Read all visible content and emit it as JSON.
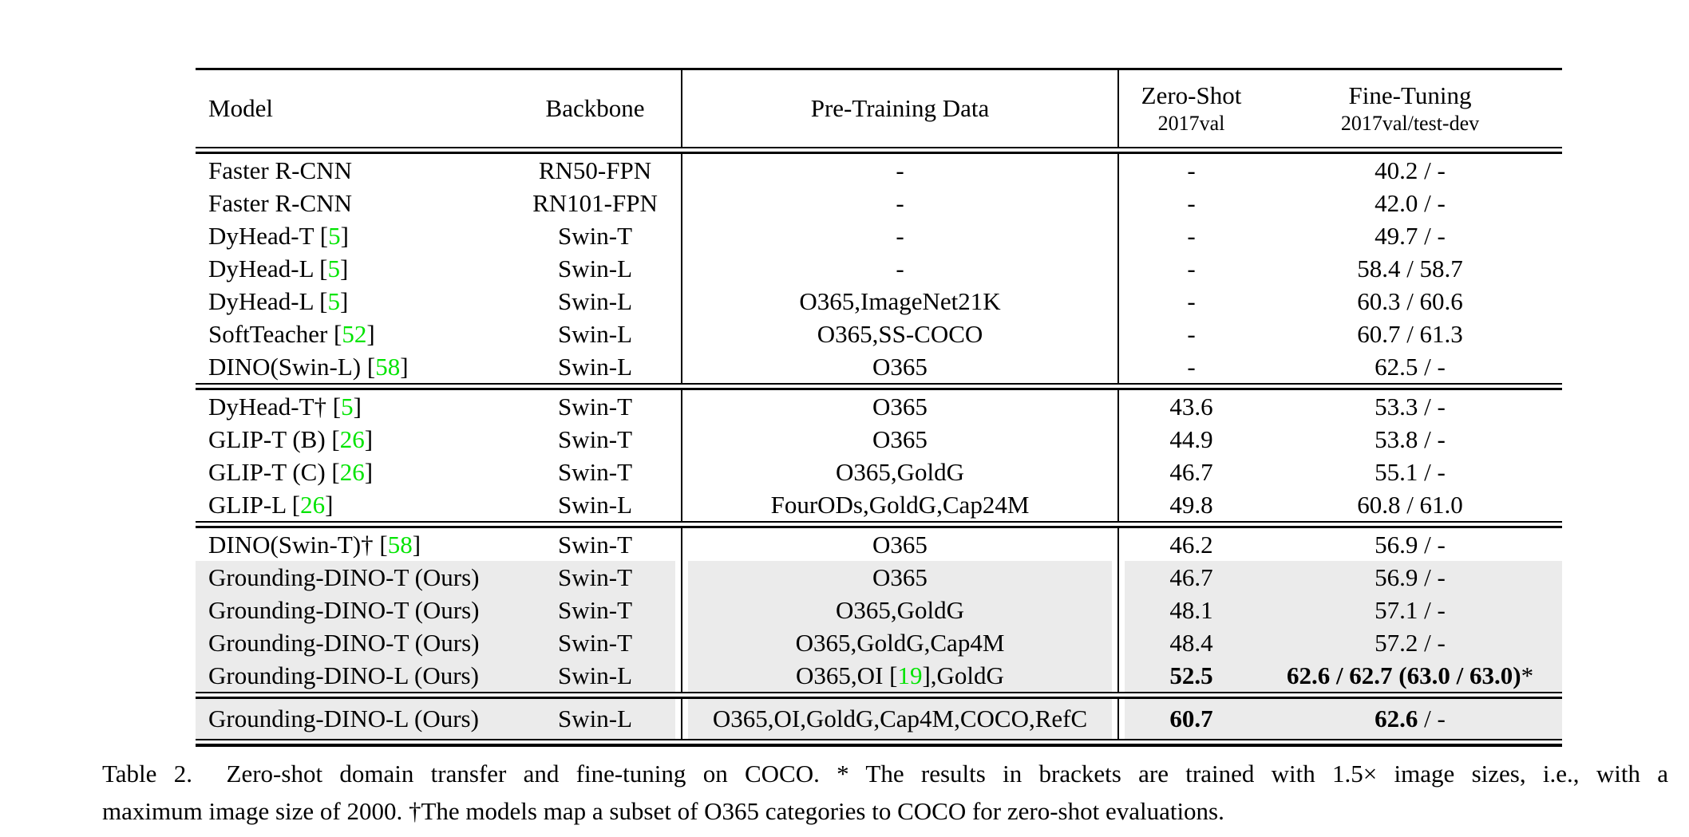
{
  "colors": {
    "cite_green": "#00e400",
    "row_shade": "#ebebeb"
  },
  "table": {
    "header": {
      "model": "Model",
      "backbone": "Backbone",
      "pretrain": "Pre-Training Data",
      "zeroshot_top": "Zero-Shot",
      "zeroshot_sub": "2017val",
      "finetune_top": "Fine-Tuning",
      "finetune_sub": "2017val/test-dev"
    },
    "groups": [
      {
        "rows": [
          {
            "model_pre": "Faster R-CNN",
            "model_cite": "",
            "model_post": "",
            "backbone": "RN50-FPN",
            "pre_pre": "-",
            "pre_cite": "",
            "pre_post": "",
            "zs": "-",
            "zs_bold": false,
            "ft_bold": "",
            "ft_reg": "40.2 / -",
            "shaded": false
          },
          {
            "model_pre": "Faster R-CNN",
            "model_cite": "",
            "model_post": "",
            "backbone": "RN101-FPN",
            "pre_pre": "-",
            "pre_cite": "",
            "pre_post": "",
            "zs": "-",
            "zs_bold": false,
            "ft_bold": "",
            "ft_reg": "42.0 / -",
            "shaded": false
          },
          {
            "model_pre": "DyHead-T [",
            "model_cite": "5",
            "model_post": "]",
            "backbone": "Swin-T",
            "pre_pre": "-",
            "pre_cite": "",
            "pre_post": "",
            "zs": "-",
            "zs_bold": false,
            "ft_bold": "",
            "ft_reg": "49.7 / -",
            "shaded": false
          },
          {
            "model_pre": "DyHead-L [",
            "model_cite": "5",
            "model_post": "]",
            "backbone": "Swin-L",
            "pre_pre": "-",
            "pre_cite": "",
            "pre_post": "",
            "zs": "-",
            "zs_bold": false,
            "ft_bold": "",
            "ft_reg": "58.4 / 58.7",
            "shaded": false
          },
          {
            "model_pre": "DyHead-L [",
            "model_cite": "5",
            "model_post": "]",
            "backbone": "Swin-L",
            "pre_pre": "O365,ImageNet21K",
            "pre_cite": "",
            "pre_post": "",
            "zs": "-",
            "zs_bold": false,
            "ft_bold": "",
            "ft_reg": "60.3 / 60.6",
            "shaded": false
          },
          {
            "model_pre": "SoftTeacher [",
            "model_cite": "52",
            "model_post": "]",
            "backbone": "Swin-L",
            "pre_pre": "O365,SS-COCO",
            "pre_cite": "",
            "pre_post": "",
            "zs": "-",
            "zs_bold": false,
            "ft_bold": "",
            "ft_reg": "60.7 / 61.3",
            "shaded": false
          },
          {
            "model_pre": "DINO(Swin-L) [",
            "model_cite": "58",
            "model_post": "]",
            "backbone": "Swin-L",
            "pre_pre": "O365",
            "pre_cite": "",
            "pre_post": "",
            "zs": "-",
            "zs_bold": false,
            "ft_bold": "",
            "ft_reg": "62.5 / -",
            "shaded": false
          }
        ]
      },
      {
        "rows": [
          {
            "model_pre": "DyHead-T† [",
            "model_cite": "5",
            "model_post": "]",
            "backbone": "Swin-T",
            "pre_pre": "O365",
            "pre_cite": "",
            "pre_post": "",
            "zs": "43.6",
            "zs_bold": false,
            "ft_bold": "",
            "ft_reg": "53.3 / -",
            "shaded": false
          },
          {
            "model_pre": "GLIP-T (B) [",
            "model_cite": "26",
            "model_post": "]",
            "backbone": "Swin-T",
            "pre_pre": "O365",
            "pre_cite": "",
            "pre_post": "",
            "zs": "44.9",
            "zs_bold": false,
            "ft_bold": "",
            "ft_reg": "53.8 / -",
            "shaded": false
          },
          {
            "model_pre": "GLIP-T (C) [",
            "model_cite": "26",
            "model_post": "]",
            "backbone": "Swin-T",
            "pre_pre": "O365,GoldG",
            "pre_cite": "",
            "pre_post": "",
            "zs": "46.7",
            "zs_bold": false,
            "ft_bold": "",
            "ft_reg": "55.1 / -",
            "shaded": false
          },
          {
            "model_pre": "GLIP-L [",
            "model_cite": "26",
            "model_post": "]",
            "backbone": "Swin-L",
            "pre_pre": "FourODs,GoldG,Cap24M",
            "pre_cite": "",
            "pre_post": "",
            "zs": "49.8",
            "zs_bold": false,
            "ft_bold": "",
            "ft_reg": "60.8 / 61.0",
            "shaded": false
          }
        ]
      },
      {
        "rows": [
          {
            "model_pre": "DINO(Swin-T)† [",
            "model_cite": "58",
            "model_post": "]",
            "backbone": "Swin-T",
            "pre_pre": "O365",
            "pre_cite": "",
            "pre_post": "",
            "zs": "46.2",
            "zs_bold": false,
            "ft_bold": "",
            "ft_reg": "56.9 / -",
            "shaded": false
          },
          {
            "model_pre": "Grounding-DINO-T (Ours)",
            "model_cite": "",
            "model_post": "",
            "backbone": "Swin-T",
            "pre_pre": "O365",
            "pre_cite": "",
            "pre_post": "",
            "zs": "46.7",
            "zs_bold": false,
            "ft_bold": "",
            "ft_reg": "56.9 / -",
            "shaded": true
          },
          {
            "model_pre": "Grounding-DINO-T (Ours)",
            "model_cite": "",
            "model_post": "",
            "backbone": "Swin-T",
            "pre_pre": "O365,GoldG",
            "pre_cite": "",
            "pre_post": "",
            "zs": "48.1",
            "zs_bold": false,
            "ft_bold": "",
            "ft_reg": "57.1 / -",
            "shaded": true
          },
          {
            "model_pre": "Grounding-DINO-T (Ours)",
            "model_cite": "",
            "model_post": "",
            "backbone": "Swin-T",
            "pre_pre": "O365,GoldG,Cap4M",
            "pre_cite": "",
            "pre_post": "",
            "zs": "48.4",
            "zs_bold": false,
            "ft_bold": "",
            "ft_reg": "57.2 / -",
            "shaded": true
          },
          {
            "model_pre": "Grounding-DINO-L (Ours)",
            "model_cite": "",
            "model_post": "",
            "backbone": "Swin-L",
            "pre_pre": "O365,OI [",
            "pre_cite": "19",
            "pre_post": "],GoldG",
            "zs": "52.5",
            "zs_bold": true,
            "ft_bold": "62.6 / 62.7 (63.0 / 63.0)",
            "ft_reg": "*",
            "shaded": true
          }
        ]
      },
      {
        "rows": [
          {
            "model_pre": "Grounding-DINO-L (Ours)",
            "model_cite": "",
            "model_post": "",
            "backbone": "Swin-L",
            "pre_pre": "O365,OI,GoldG,Cap4M,COCO,RefC",
            "pre_cite": "",
            "pre_post": "",
            "zs": "60.7",
            "zs_bold": true,
            "ft_bold": "62.6",
            "ft_reg": " / -",
            "shaded": true
          }
        ]
      }
    ]
  },
  "caption": {
    "line1": "Table 2.  Zero-shot domain transfer and fine-tuning on COCO. * The results in brackets are trained with 1.5× image sizes, i.e., with a",
    "line2": "maximum image size of 2000. †The models map a subset of O365 categories to COCO for zero-shot evaluations."
  }
}
